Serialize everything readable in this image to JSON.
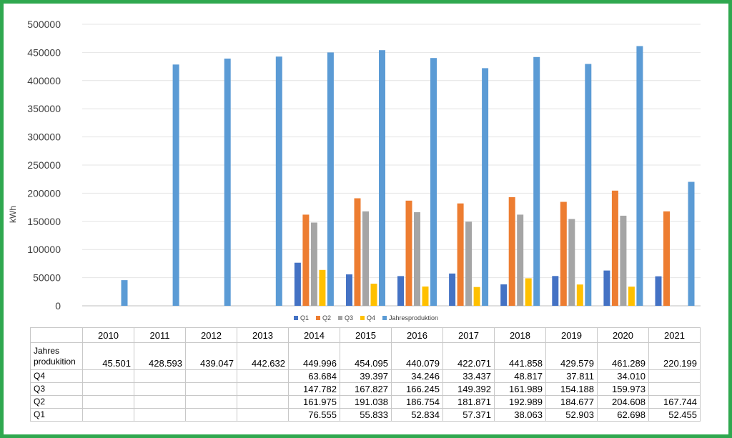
{
  "chart_data": {
    "type": "bar",
    "title": "",
    "ylabel": "kWh",
    "xlabel": "",
    "ylim": [
      0,
      500000
    ],
    "yticks": [
      0,
      50000,
      100000,
      150000,
      200000,
      250000,
      300000,
      350000,
      400000,
      450000,
      500000
    ],
    "grid": true,
    "legend_position": "bottom",
    "categories": [
      "2010",
      "2011",
      "2012",
      "2013",
      "2014",
      "2015",
      "2016",
      "2017",
      "2018",
      "2019",
      "2020",
      "2021"
    ],
    "series": [
      {
        "name": "Q1",
        "color": "#4472c4",
        "values": [
          null,
          null,
          null,
          null,
          76555,
          55833,
          52834,
          57371,
          38063,
          52903,
          62698,
          52455
        ]
      },
      {
        "name": "Q2",
        "color": "#ed7d31",
        "values": [
          null,
          null,
          null,
          null,
          161975,
          191038,
          186754,
          181871,
          192989,
          184677,
          204608,
          167744
        ]
      },
      {
        "name": "Q3",
        "color": "#a5a5a5",
        "values": [
          null,
          null,
          null,
          null,
          147782,
          167827,
          166245,
          149392,
          161989,
          154188,
          159973,
          null
        ]
      },
      {
        "name": "Q4",
        "color": "#ffc000",
        "values": [
          null,
          null,
          null,
          null,
          63684,
          39397,
          34246,
          33437,
          48817,
          37811,
          34010,
          null
        ]
      },
      {
        "name": "Jahresproduktion",
        "color": "#5b9bd5",
        "values": [
          45501,
          428593,
          439047,
          442632,
          449996,
          454095,
          440079,
          422071,
          441858,
          429579,
          461289,
          220199
        ]
      }
    ]
  },
  "table": {
    "years": [
      "2010",
      "2011",
      "2012",
      "2013",
      "2014",
      "2015",
      "2016",
      "2017",
      "2018",
      "2019",
      "2020",
      "2021"
    ],
    "rows": [
      {
        "label_line1": "Jahres",
        "label_line2": "produkition",
        "cells": [
          "45.501",
          "428.593",
          "439.047",
          "442.632",
          "449.996",
          "454.095",
          "440.079",
          "422.071",
          "441.858",
          "429.579",
          "461.289",
          "220.199"
        ]
      },
      {
        "label": "Q4",
        "cells": [
          "",
          "",
          "",
          "",
          "63.684",
          "39.397",
          "34.246",
          "33.437",
          "48.817",
          "37.811",
          "34.010",
          ""
        ]
      },
      {
        "label": "Q3",
        "cells": [
          "",
          "",
          "",
          "",
          "147.782",
          "167.827",
          "166.245",
          "149.392",
          "161.989",
          "154.188",
          "159.973",
          ""
        ]
      },
      {
        "label": "Q2",
        "cells": [
          "",
          "",
          "",
          "",
          "161.975",
          "191.038",
          "186.754",
          "181.871",
          "192.989",
          "184.677",
          "204.608",
          "167.744"
        ]
      },
      {
        "label": "Q1",
        "cells": [
          "",
          "",
          "",
          "",
          "76.555",
          "55.833",
          "52.834",
          "57.371",
          "38.063",
          "52.903",
          "62.698",
          "52.455"
        ]
      }
    ]
  }
}
